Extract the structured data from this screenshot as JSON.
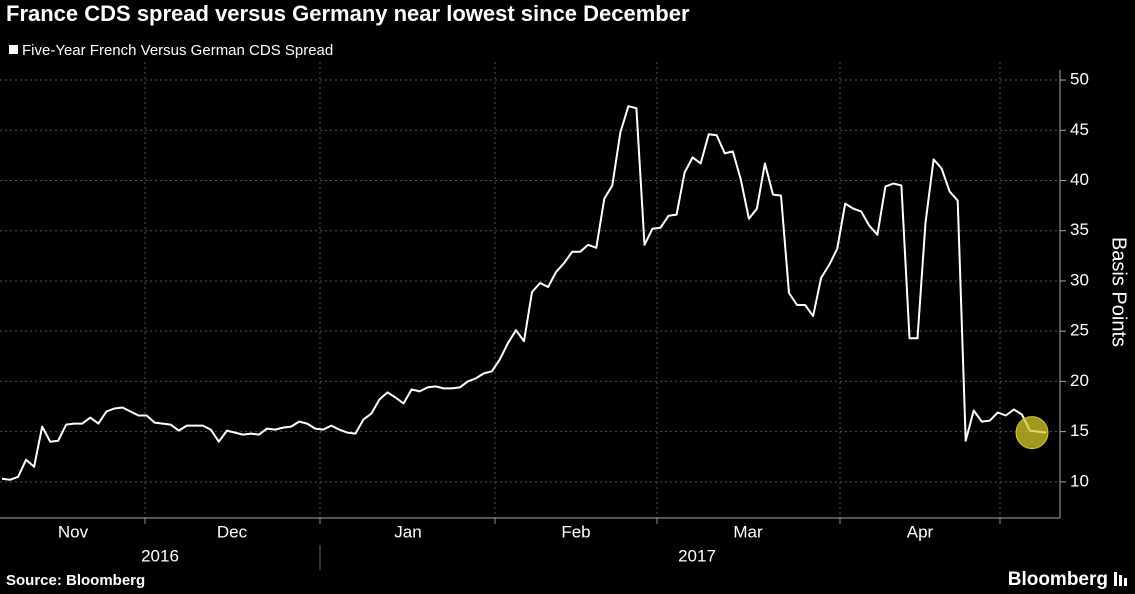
{
  "chart_data": {
    "type": "line",
    "title": "France CDS spread versus Germany near lowest since December",
    "series": [
      {
        "name": "Five-Year French Versus German CDS Spread",
        "color": "#ffffff",
        "values": [
          10.3,
          10.2,
          10.5,
          12.2,
          11.5,
          15.5,
          14.0,
          14.1,
          15.7,
          15.8,
          15.8,
          16.4,
          15.8,
          17.0,
          17.3,
          17.4,
          17.0,
          16.6,
          16.6,
          15.9,
          15.8,
          15.7,
          15.1,
          15.6,
          15.6,
          15.6,
          15.2,
          14.0,
          15.1,
          14.9,
          14.7,
          14.8,
          14.7,
          15.3,
          15.2,
          15.4,
          15.5,
          16.0,
          15.8,
          15.3,
          15.2,
          15.6,
          15.2,
          14.9,
          14.8,
          16.2,
          16.8,
          18.2,
          18.9,
          18.4,
          17.8,
          19.2,
          19.0,
          19.4,
          19.5,
          19.3,
          19.3,
          19.4,
          20.0,
          20.3,
          20.8,
          21.0,
          22.2,
          23.8,
          25.1,
          24.0,
          28.9,
          29.8,
          29.4,
          30.9,
          31.8,
          32.9,
          32.9,
          33.6,
          33.3,
          38.2,
          39.5,
          44.8,
          47.4,
          47.2,
          33.6,
          35.2,
          35.3,
          36.5,
          36.6,
          40.8,
          42.3,
          41.7,
          44.6,
          44.5,
          42.7,
          42.9,
          40.1,
          36.2,
          37.2,
          41.7,
          38.6,
          38.5,
          28.8,
          27.6,
          27.6,
          26.5,
          30.3,
          31.6,
          33.2,
          37.7,
          37.2,
          36.9,
          35.5,
          34.6,
          39.4,
          39.7,
          39.5,
          24.3,
          24.3,
          35.8,
          42.1,
          41.2,
          38.9,
          38.0,
          14.1,
          17.1,
          16.0,
          16.1,
          16.9,
          16.6,
          17.2,
          16.7,
          15.1,
          15.0,
          14.9
        ]
      }
    ],
    "month_labels": [
      "Nov",
      "Dec",
      "Jan",
      "Feb",
      "Mar",
      "Apr"
    ],
    "year_labels": [
      "2016",
      "2017"
    ],
    "ylabel": "Basis Points",
    "ylim": [
      6.4,
      51
    ],
    "yticks": [
      10,
      15,
      20,
      25,
      30,
      35,
      40,
      45,
      50
    ],
    "grid": true,
    "highlight_color": "#d4cc2a",
    "source": "Source: Bloomberg",
    "brand": "Bloomberg"
  }
}
